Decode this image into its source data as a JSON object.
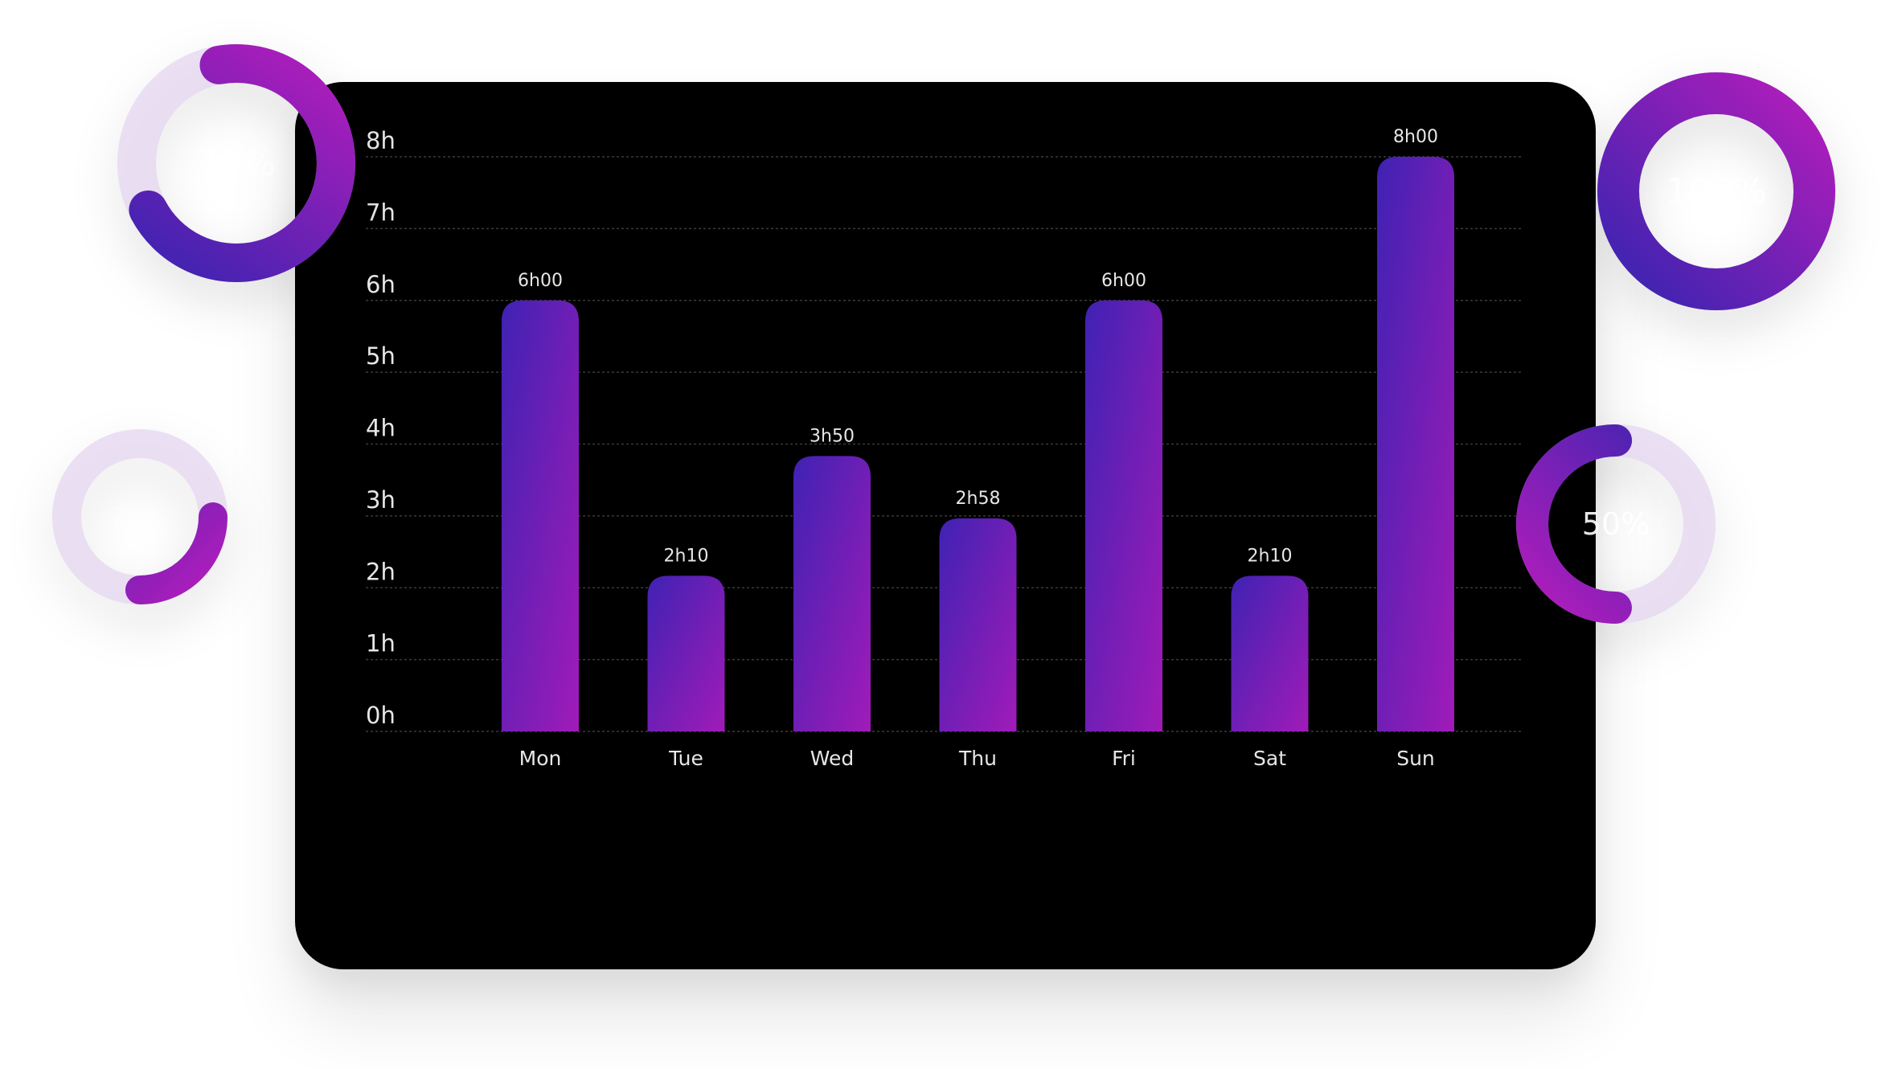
{
  "chart_data": {
    "type": "bar",
    "categories": [
      "Mon",
      "Tue",
      "Wed",
      "Thu",
      "Fri",
      "Sat",
      "Sun"
    ],
    "values": [
      6.0,
      2.1667,
      3.8333,
      2.9667,
      6.0,
      2.1667,
      8.0
    ],
    "value_labels": [
      "6h00",
      "2h10",
      "3h50",
      "2h58",
      "6h00",
      "2h10",
      "8h00"
    ],
    "yticks": [
      "0h",
      "1h",
      "2h",
      "3h",
      "4h",
      "5h",
      "6h",
      "7h",
      "8h"
    ],
    "ylim": [
      0,
      8
    ],
    "grid": true,
    "bar_gradient": [
      "#3f22b3",
      "#a11bb8"
    ],
    "background": "#000000"
  },
  "progress_rings": [
    {
      "label": "70%",
      "value": 0.7
    },
    {
      "label": "100%",
      "value": 1.0
    },
    {
      "label": "25%",
      "value": 0.25
    },
    {
      "label": "50%",
      "value": 0.5
    }
  ],
  "colors": {
    "ring_start": "#3a24b0",
    "ring_end": "#b21dbb",
    "ring_track": "#e4d6f0",
    "text": "#e6e6e6",
    "grid": "#3a3a3a"
  }
}
